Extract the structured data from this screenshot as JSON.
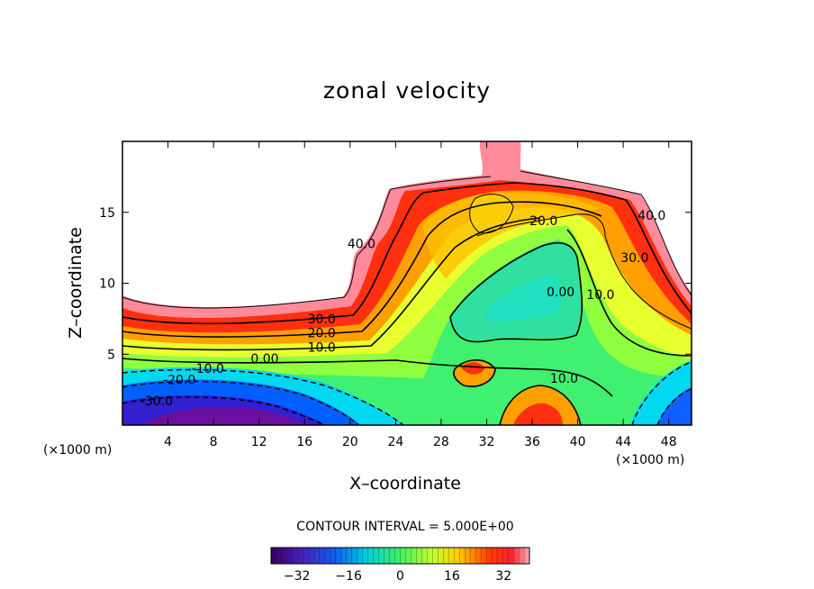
{
  "chart_data": {
    "type": "heatmap",
    "title": "zonal velocity",
    "xlabel": "X–coordinate",
    "ylabel": "Z–coordinate",
    "x_unit_left": "(×1000 m)",
    "x_unit_right": "(×1000 m)",
    "xlim": [
      0,
      50
    ],
    "ylim": [
      0,
      20
    ],
    "x_ticks": [
      4,
      8,
      12,
      16,
      20,
      24,
      28,
      32,
      36,
      40,
      44,
      48
    ],
    "y_ticks": [
      5,
      10,
      15
    ],
    "contour_interval_text": "CONTOUR INTERVAL = 5.000E+00",
    "contour_labels": [
      {
        "text": "40.0",
        "x": 21,
        "y": 12.8
      },
      {
        "text": "40.0",
        "x": 46.5,
        "y": 14.8
      },
      {
        "text": "30.0",
        "x": 45,
        "y": 11.8
      },
      {
        "text": "20.0",
        "x": 37,
        "y": 14.4
      },
      {
        "text": "0.00",
        "x": 38.5,
        "y": 9.4
      },
      {
        "text": "10.0",
        "x": 42,
        "y": 9.2
      },
      {
        "text": "30.0",
        "x": 17.5,
        "y": 7.5
      },
      {
        "text": "20.0",
        "x": 17.5,
        "y": 6.5
      },
      {
        "text": "10.0",
        "x": 17.5,
        "y": 5.5
      },
      {
        "text": "0.00",
        "x": 12.5,
        "y": 4.7
      },
      {
        "text": "-10.0",
        "x": 7.5,
        "y": 4.0
      },
      {
        "text": "-20.0",
        "x": 5,
        "y": 3.2
      },
      {
        "text": "-30.0",
        "x": 3,
        "y": 1.7
      },
      {
        "text": "10.0",
        "x": 38.8,
        "y": 3.3
      }
    ],
    "colorbar": {
      "min": -40,
      "max": 40,
      "tick_labels": [
        "-32",
        "-16",
        "0",
        "16",
        "32"
      ],
      "tick_values": [
        -32,
        -16,
        0,
        16,
        32
      ]
    },
    "colormap": [
      "#3a0060",
      "#5a1aa0",
      "#3030e0",
      "#0090ff",
      "#00e0e0",
      "#40f080",
      "#80ff40",
      "#e0ff30",
      "#ffc000",
      "#ff5000",
      "#ff2000",
      "#ff8a9a"
    ]
  }
}
